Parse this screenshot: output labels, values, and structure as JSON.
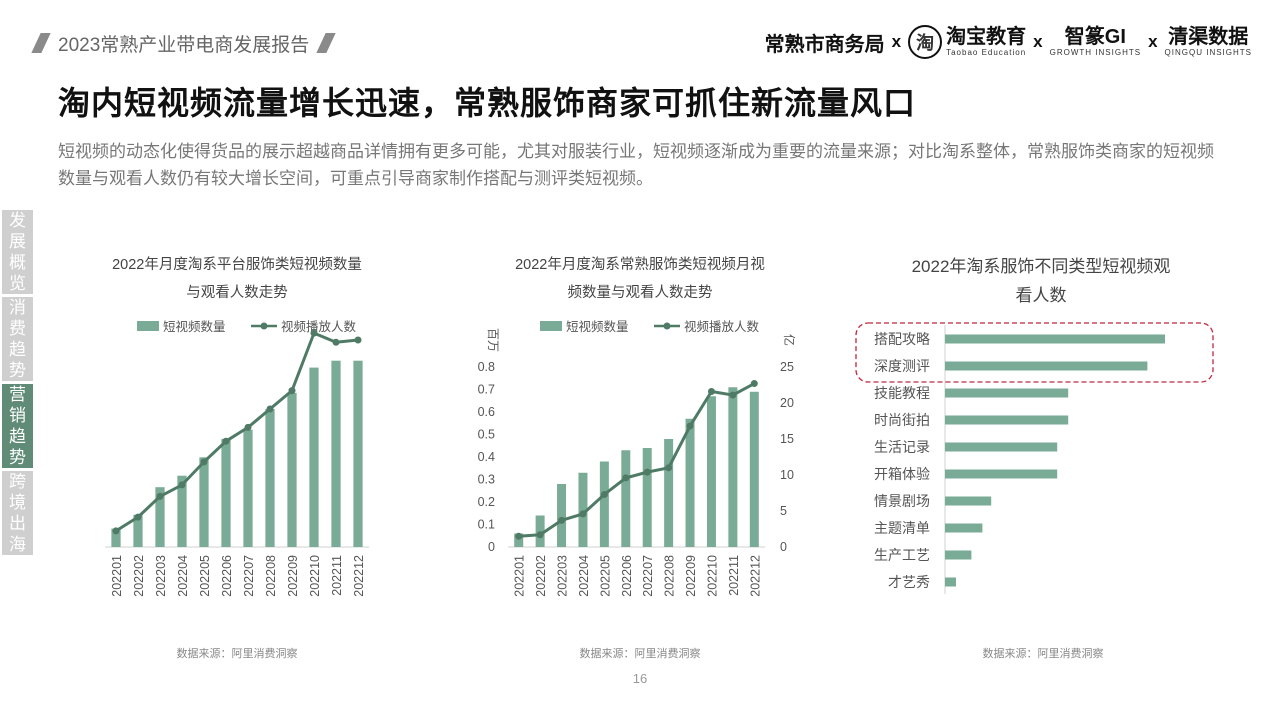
{
  "header": {
    "report_title": "2023常熟产业带电商发展报告",
    "logos": {
      "partner1": "常熟市商务局",
      "taobao_icon_char": "淘",
      "partner2": "淘宝教育",
      "partner2_sub": "Taobao Education",
      "partner3": "智篆GI",
      "partner3_sub": "GROWTH INSIGHTS",
      "partner4": "清渠数据",
      "partner4_sub": "QINGQU INSIGHTS",
      "separator": "x"
    }
  },
  "title": "淘内短视频流量增长迅速，常熟服饰商家可抓住新流量风口",
  "description": "短视频的动态化使得货品的展示超越商品详情拥有更多可能，尤其对服装行业，短视频逐渐成为重要的流量来源；对比淘系整体，常熟服饰类商家的短视频数量与观看人数仍有较大增长空间，可重点引导商家制作搭配与测评类短视频。",
  "side_nav": [
    {
      "label": "发展概览",
      "active": false
    },
    {
      "label": "消费趋势",
      "active": false
    },
    {
      "label": "营销趋势",
      "active": true
    },
    {
      "label": "跨境出海",
      "active": false
    }
  ],
  "colors": {
    "bar": "#7aab96",
    "line": "#4f7b66",
    "highlight": "#c0283d",
    "axis": "#d0d0d0"
  },
  "page_number": "16",
  "chart_data": [
    {
      "type": "bar",
      "title_lines": [
        "2022年月度淘系平台服饰类短视频数量",
        "与观看人数走势"
      ],
      "legend": {
        "bar": "短视频数量",
        "line": "视频播放人数",
        "placement": "top"
      },
      "categories": [
        "202201",
        "202202",
        "202203",
        "202204",
        "202205",
        "202206",
        "202207",
        "202208",
        "202209",
        "202210",
        "202211",
        "202212"
      ],
      "series": [
        {
          "name": "短视频数量",
          "type": "bar",
          "values": [
            0.08,
            0.14,
            0.26,
            0.31,
            0.39,
            0.47,
            0.51,
            0.6,
            0.67,
            0.78,
            0.81,
            0.81
          ]
        },
        {
          "name": "视频播放人数",
          "type": "line",
          "values": [
            0.07,
            0.13,
            0.22,
            0.27,
            0.37,
            0.46,
            0.52,
            0.6,
            0.68,
            0.93,
            0.89,
            0.9
          ]
        }
      ],
      "y_axis_visible": false,
      "ylim": [
        0,
        1.0
      ],
      "source": "数据来源：阿里消费洞察"
    },
    {
      "type": "bar",
      "title_lines": [
        "2022年月度淘系常熟服饰类短视频月视",
        "频数量与观看人数走势"
      ],
      "legend": {
        "bar": "短视频数量",
        "line": "视频播放人数",
        "placement": "top"
      },
      "categories": [
        "202201",
        "202202",
        "202203",
        "202204",
        "202205",
        "202206",
        "202207",
        "202208",
        "202209",
        "202210",
        "202211",
        "202212"
      ],
      "series": [
        {
          "name": "短视频数量",
          "type": "bar",
          "axis": "left",
          "values": [
            0.06,
            0.14,
            0.28,
            0.33,
            0.38,
            0.43,
            0.44,
            0.48,
            0.57,
            0.67,
            0.71,
            0.69
          ]
        },
        {
          "name": "视频播放人数",
          "type": "line",
          "axis": "right",
          "values": [
            1.5,
            1.7,
            3.7,
            4.6,
            7.3,
            9.6,
            10.4,
            11.0,
            16.8,
            21.6,
            21.1,
            22.7
          ]
        }
      ],
      "y_left": {
        "label": "百万",
        "ticks": [
          0,
          0.1,
          0.2,
          0.3,
          0.4,
          0.5,
          0.6,
          0.7,
          0.8
        ],
        "tick_labels": [
          "0",
          "0.1",
          "0.2",
          "0.3",
          "0.4",
          "0.5",
          "0.6",
          "0.7",
          "0.8"
        ],
        "range": [
          0,
          0.8
        ]
      },
      "y_right": {
        "label": "亿",
        "ticks": [
          0,
          5,
          10,
          15,
          20,
          25
        ],
        "tick_labels": [
          "0",
          "5",
          "10",
          "15",
          "20",
          "25"
        ],
        "range": [
          0,
          25
        ]
      },
      "source": "数据来源：阿里消费洞察"
    },
    {
      "type": "bar-horizontal",
      "title_lines": [
        "2022年淘系服饰不同类型短视频观",
        "看人数"
      ],
      "categories": [
        "搭配攻略",
        "深度测评",
        "技能教程",
        "时尚街拍",
        "生活记录",
        "开箱体验",
        "情景剧场",
        "主题清单",
        "生产工艺",
        "才艺秀"
      ],
      "values": [
        100,
        92,
        56,
        56,
        51,
        51,
        21,
        17,
        12,
        5
      ],
      "x_axis_visible": false,
      "xlim": [
        0,
        100
      ],
      "highlighted": [
        "搭配攻略",
        "深度测评"
      ],
      "source": "数据来源：阿里消费洞察"
    }
  ]
}
